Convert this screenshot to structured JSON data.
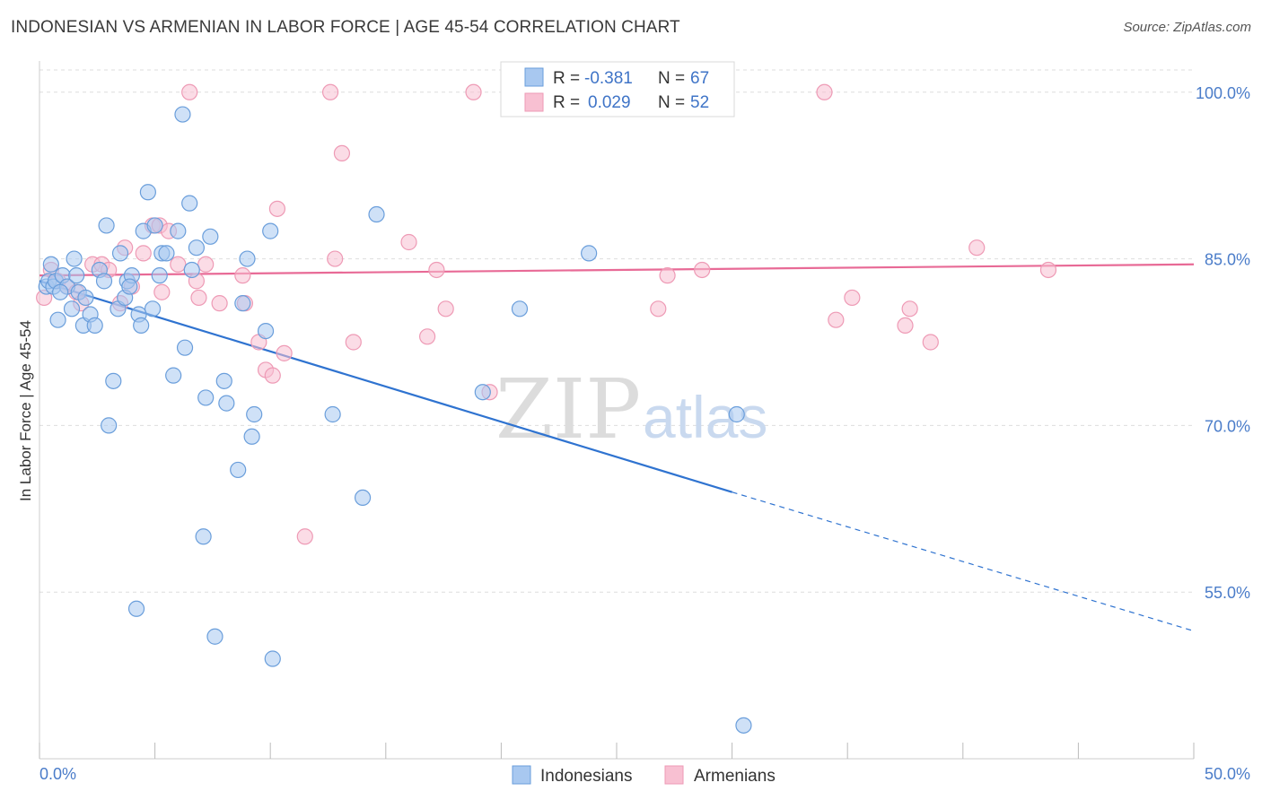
{
  "header": {
    "title": "INDONESIAN VS ARMENIAN IN LABOR FORCE | AGE 45-54 CORRELATION CHART",
    "source": "Source: ZipAtlas.com"
  },
  "legend_top": {
    "r_label": "R =",
    "n_label": "N =",
    "indonesians": {
      "r": "-0.381",
      "n": "67"
    },
    "armenians": {
      "r": "0.029",
      "n": "52"
    }
  },
  "legend_bottom": {
    "indonesians": "Indonesians",
    "armenians": "Armenians"
  },
  "watermark": {
    "zip": "ZIP",
    "atlas": "atlas"
  },
  "colors": {
    "indonesians_fill": "#a8c8f0",
    "indonesians_stroke": "#6a9edb",
    "indonesians_line": "#2f73d0",
    "armenians_fill": "#f8c0d2",
    "armenians_stroke": "#ee9ab5",
    "armenians_line": "#e86a96",
    "tick_text": "#4a7cc9",
    "grid": "#dddddd"
  },
  "chart_data": {
    "type": "scatter",
    "xlabel": "",
    "ylabel": "In Labor Force | Age 45-54",
    "xlim": [
      0,
      50
    ],
    "ylim": [
      40,
      102
    ],
    "x_tick_labels": [
      "0.0%",
      "50.0%"
    ],
    "y_ticks": [
      55,
      70,
      85,
      100
    ],
    "y_tick_labels": [
      "55.0%",
      "70.0%",
      "85.0%",
      "100.0%"
    ],
    "grid": true,
    "legend": "top-center",
    "series": [
      {
        "name": "Indonesians",
        "trend": {
          "x0": 0,
          "y0": 83.0,
          "x1": 30,
          "y1": 64.0,
          "dashed_to_x": 50,
          "dashed_to_y": 51.5
        },
        "points": [
          [
            0.3,
            82.5
          ],
          [
            0.4,
            83.0
          ],
          [
            0.5,
            84.5
          ],
          [
            0.6,
            82.5
          ],
          [
            0.7,
            83.0
          ],
          [
            0.8,
            79.5
          ],
          [
            1.0,
            83.5
          ],
          [
            1.2,
            82.5
          ],
          [
            1.4,
            80.5
          ],
          [
            1.5,
            85.0
          ],
          [
            1.7,
            82.0
          ],
          [
            1.9,
            79.0
          ],
          [
            2.0,
            81.5
          ],
          [
            2.2,
            80.0
          ],
          [
            2.4,
            79.0
          ],
          [
            2.6,
            84.0
          ],
          [
            2.8,
            83.0
          ],
          [
            2.9,
            88.0
          ],
          [
            3.0,
            70.0
          ],
          [
            3.2,
            74.0
          ],
          [
            3.4,
            80.5
          ],
          [
            3.5,
            85.5
          ],
          [
            3.7,
            81.5
          ],
          [
            3.8,
            83.0
          ],
          [
            4.0,
            83.5
          ],
          [
            4.2,
            53.5
          ],
          [
            4.3,
            80.0
          ],
          [
            4.4,
            79.0
          ],
          [
            4.5,
            87.5
          ],
          [
            4.7,
            91.0
          ],
          [
            4.9,
            80.5
          ],
          [
            5.0,
            88.0
          ],
          [
            5.2,
            83.5
          ],
          [
            5.3,
            85.5
          ],
          [
            5.5,
            85.5
          ],
          [
            5.8,
            74.5
          ],
          [
            6.0,
            87.5
          ],
          [
            6.2,
            98.0
          ],
          [
            6.3,
            77.0
          ],
          [
            6.5,
            90.0
          ],
          [
            6.6,
            84.0
          ],
          [
            6.8,
            86.0
          ],
          [
            7.1,
            60.0
          ],
          [
            7.2,
            72.5
          ],
          [
            7.4,
            87.0
          ],
          [
            7.6,
            51.0
          ],
          [
            8.0,
            74.0
          ],
          [
            8.1,
            72.0
          ],
          [
            8.6,
            66.0
          ],
          [
            8.8,
            81.0
          ],
          [
            9.0,
            85.0
          ],
          [
            9.2,
            69.0
          ],
          [
            9.3,
            71.0
          ],
          [
            9.8,
            78.5
          ],
          [
            10.0,
            87.5
          ],
          [
            10.1,
            49.0
          ],
          [
            12.7,
            71.0
          ],
          [
            14.0,
            63.5
          ],
          [
            14.6,
            89.0
          ],
          [
            19.2,
            73.0
          ],
          [
            20.8,
            80.5
          ],
          [
            23.8,
            85.5
          ],
          [
            30.2,
            71.0
          ],
          [
            30.5,
            43.0
          ],
          [
            0.9,
            82.0
          ],
          [
            1.6,
            83.5
          ],
          [
            3.9,
            82.5
          ]
        ]
      },
      {
        "name": "Armenians",
        "trend": {
          "x0": 0,
          "y0": 83.5,
          "x1": 50,
          "y1": 84.5
        },
        "points": [
          [
            0.2,
            81.5
          ],
          [
            0.5,
            84.0
          ],
          [
            0.8,
            83.0
          ],
          [
            1.2,
            82.5
          ],
          [
            1.6,
            82.0
          ],
          [
            1.8,
            81.0
          ],
          [
            2.3,
            84.5
          ],
          [
            2.7,
            84.5
          ],
          [
            3.0,
            84.0
          ],
          [
            3.5,
            81.0
          ],
          [
            3.7,
            86.0
          ],
          [
            4.0,
            82.5
          ],
          [
            4.5,
            85.5
          ],
          [
            4.9,
            88.0
          ],
          [
            5.2,
            88.0
          ],
          [
            5.3,
            82.0
          ],
          [
            5.6,
            87.5
          ],
          [
            6.0,
            84.5
          ],
          [
            6.5,
            100.0
          ],
          [
            6.8,
            83.0
          ],
          [
            6.9,
            81.5
          ],
          [
            7.2,
            84.5
          ],
          [
            7.8,
            81.0
          ],
          [
            8.8,
            83.5
          ],
          [
            8.9,
            81.0
          ],
          [
            9.5,
            77.5
          ],
          [
            9.8,
            75.0
          ],
          [
            10.1,
            74.5
          ],
          [
            10.3,
            89.5
          ],
          [
            10.6,
            76.5
          ],
          [
            11.5,
            60.0
          ],
          [
            12.6,
            100.0
          ],
          [
            12.8,
            85.0
          ],
          [
            13.1,
            94.5
          ],
          [
            13.6,
            77.5
          ],
          [
            16.0,
            86.5
          ],
          [
            16.8,
            78.0
          ],
          [
            17.2,
            84.0
          ],
          [
            17.6,
            80.5
          ],
          [
            18.8,
            100.0
          ],
          [
            19.5,
            73.0
          ],
          [
            26.8,
            80.5
          ],
          [
            27.2,
            83.5
          ],
          [
            28.7,
            84.0
          ],
          [
            34.0,
            100.0
          ],
          [
            34.5,
            79.5
          ],
          [
            35.2,
            81.5
          ],
          [
            37.5,
            79.0
          ],
          [
            37.7,
            80.5
          ],
          [
            38.6,
            77.5
          ],
          [
            40.6,
            86.0
          ],
          [
            43.7,
            84.0
          ]
        ]
      }
    ]
  }
}
